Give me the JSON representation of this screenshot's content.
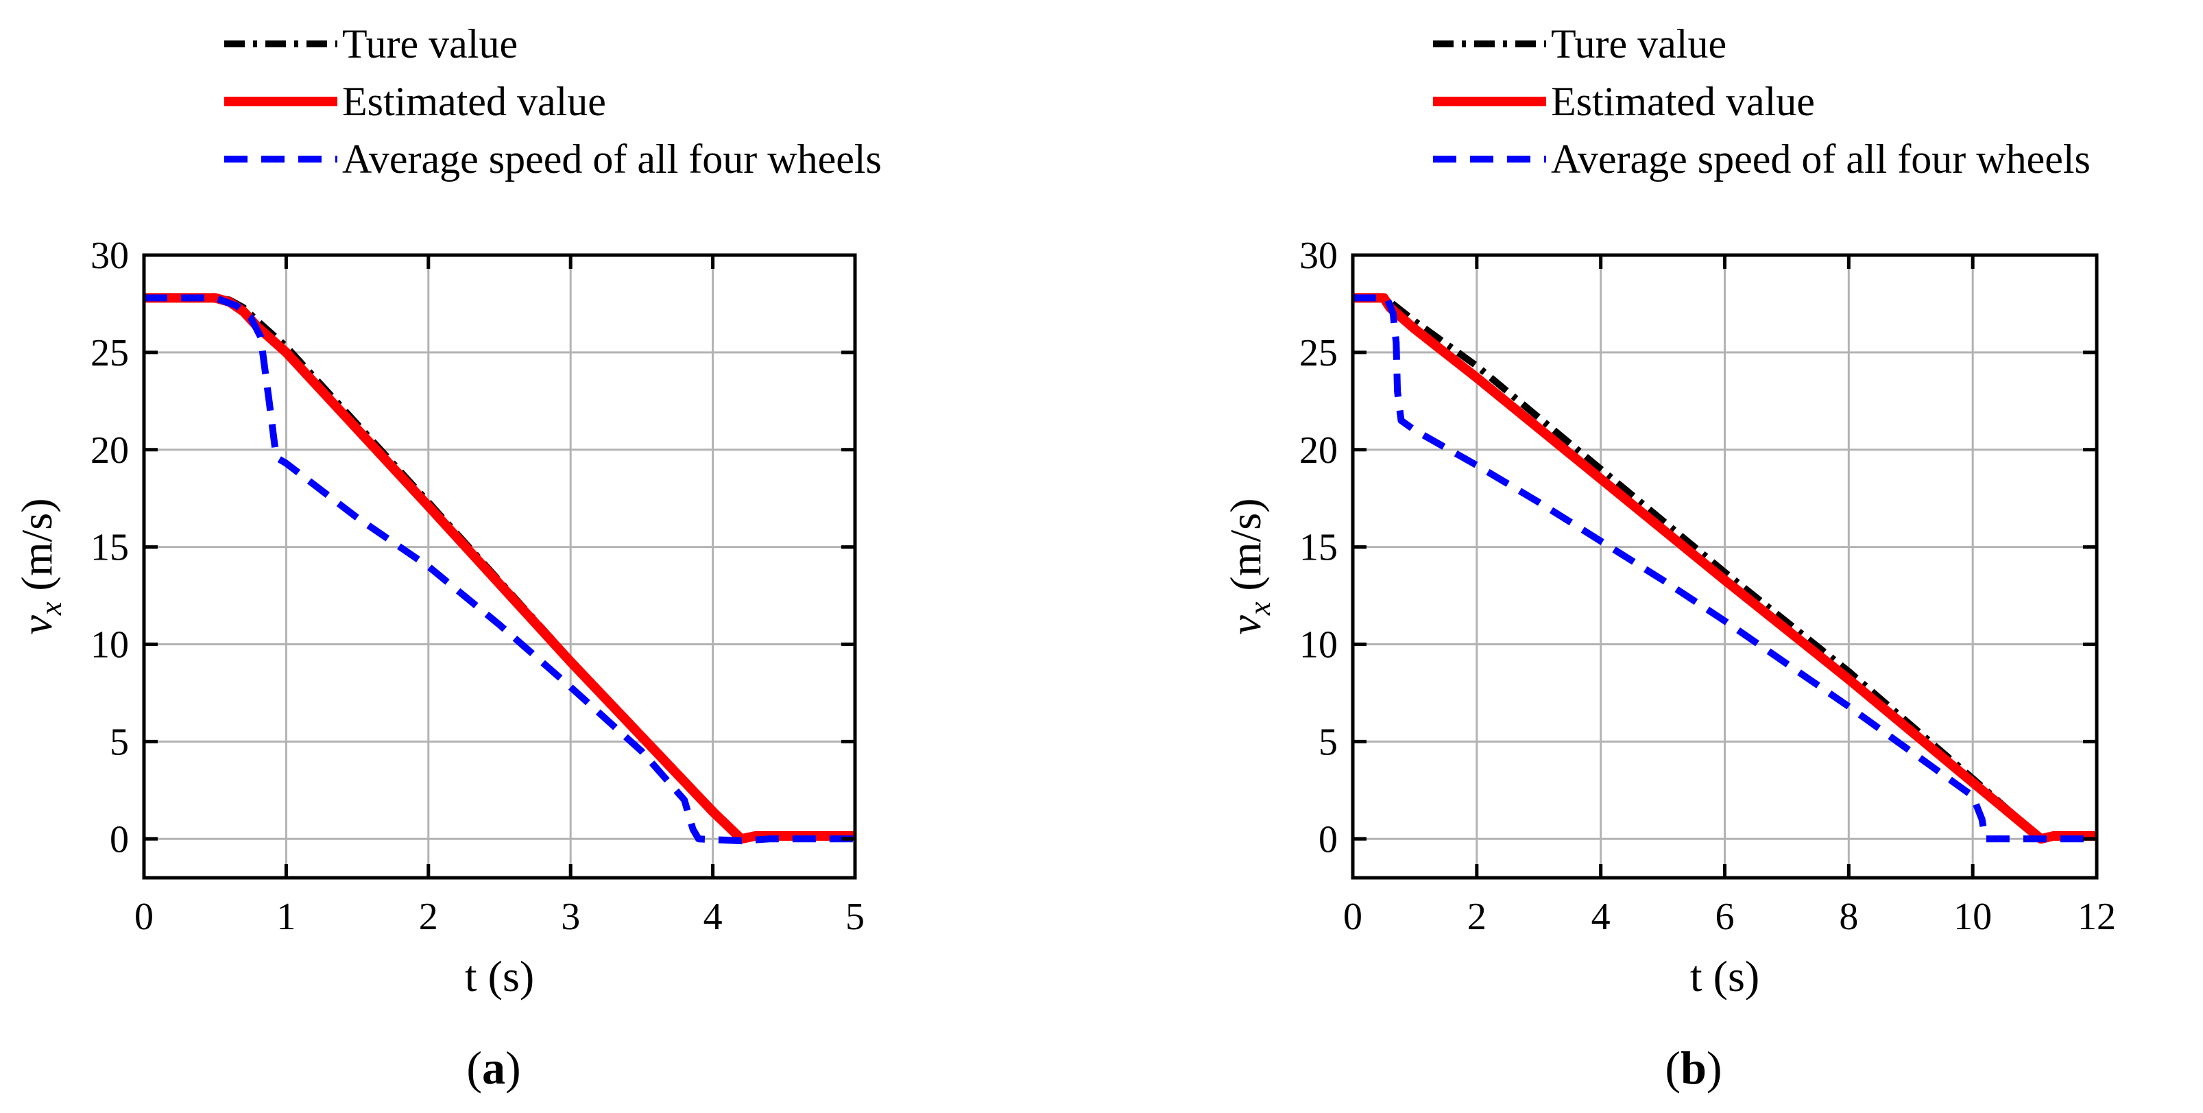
{
  "chart_data": [
    {
      "type": "line",
      "panel_label": "(a)",
      "panel_letter": "a",
      "xlabel": "t (s)",
      "ylabel_var": "v",
      "ylabel_sub": "x",
      "ylabel_unit": " (m/s)",
      "xlim": [
        0,
        5
      ],
      "ylim": [
        -2,
        30
      ],
      "xticks": [
        0,
        1,
        2,
        3,
        4,
        5
      ],
      "yticks": [
        0,
        5,
        10,
        15,
        20,
        25,
        30
      ],
      "grid": true,
      "legend": [
        "Ture value",
        "Estimated value",
        "Average speed of all four wheels"
      ],
      "series": [
        {
          "name": "Ture value",
          "color": "#000000",
          "style": "dash-dot",
          "x": [
            0,
            0.5,
            0.6,
            0.7,
            0.8,
            1.0,
            2.0,
            3.0,
            4.0,
            4.2,
            4.3,
            5.0
          ],
          "y": [
            27.8,
            27.8,
            27.7,
            27.3,
            26.6,
            25.3,
            17.3,
            9.2,
            1.5,
            0.0,
            0.1,
            0.1
          ]
        },
        {
          "name": "Estimated value",
          "color": "#ff0000",
          "style": "solid",
          "x": [
            0,
            0.5,
            0.6,
            0.7,
            0.8,
            1.0,
            2.0,
            3.0,
            4.0,
            4.2,
            4.3,
            5.0
          ],
          "y": [
            27.8,
            27.8,
            27.6,
            27.1,
            26.3,
            25.0,
            17.1,
            9.1,
            1.4,
            0.0,
            0.15,
            0.15
          ]
        },
        {
          "name": "Average speed of all four wheels",
          "color": "#0000ff",
          "style": "dashed",
          "x": [
            0,
            0.5,
            0.65,
            0.75,
            0.82,
            0.88,
            0.93,
            1.0,
            1.5,
            2.0,
            2.5,
            3.0,
            3.5,
            3.8,
            3.86,
            3.9,
            4.2,
            4.4,
            5.0
          ],
          "y": [
            27.8,
            27.8,
            27.4,
            26.8,
            25.8,
            22.5,
            19.6,
            19.3,
            16.5,
            14.0,
            11.0,
            7.8,
            4.5,
            2.0,
            0.5,
            0.0,
            -0.1,
            0.0,
            0.0
          ]
        }
      ]
    },
    {
      "type": "line",
      "panel_label": "(b)",
      "panel_letter": "b",
      "xlabel": "t (s)",
      "ylabel_var": "v",
      "ylabel_sub": "x",
      "ylabel_unit": " (m/s)",
      "xlim": [
        0,
        12
      ],
      "ylim": [
        -2,
        30
      ],
      "xticks": [
        0,
        2,
        4,
        6,
        8,
        10,
        12
      ],
      "yticks": [
        0,
        5,
        10,
        15,
        20,
        25,
        30
      ],
      "grid": true,
      "legend": [
        "Ture value",
        "Estimated value",
        "Average speed of all four wheels"
      ],
      "series": [
        {
          "name": "Ture value",
          "color": "#000000",
          "style": "dash-dot",
          "x": [
            0,
            0.5,
            0.6,
            1.0,
            2.0,
            4.0,
            6.0,
            8.0,
            10.0,
            11.1,
            11.3,
            12.0
          ],
          "y": [
            27.8,
            27.8,
            27.6,
            26.6,
            24.3,
            19.0,
            13.7,
            8.6,
            3.1,
            0.0,
            0.1,
            0.1
          ]
        },
        {
          "name": "Estimated value",
          "color": "#ff0000",
          "style": "solid",
          "x": [
            0,
            0.5,
            0.6,
            1.0,
            2.0,
            4.0,
            6.0,
            8.0,
            10.0,
            11.1,
            11.3,
            12.0
          ],
          "y": [
            27.8,
            27.8,
            27.3,
            26.2,
            23.7,
            18.5,
            13.3,
            8.2,
            2.9,
            0.0,
            0.15,
            0.15
          ]
        },
        {
          "name": "Average speed of all four wheels",
          "color": "#0000ff",
          "style": "dashed",
          "x": [
            0,
            0.55,
            0.65,
            0.7,
            0.72,
            0.78,
            1.0,
            2.0,
            3.0,
            4.0,
            5.0,
            6.0,
            7.0,
            8.0,
            9.0,
            10.0,
            10.15,
            10.2,
            11.0,
            12.0
          ],
          "y": [
            27.8,
            27.8,
            27.0,
            25.5,
            23.0,
            21.5,
            21.0,
            19.2,
            17.3,
            15.3,
            13.3,
            11.2,
            9.0,
            6.8,
            4.5,
            2.2,
            1.0,
            0.0,
            0.0,
            0.0
          ]
        }
      ]
    }
  ]
}
